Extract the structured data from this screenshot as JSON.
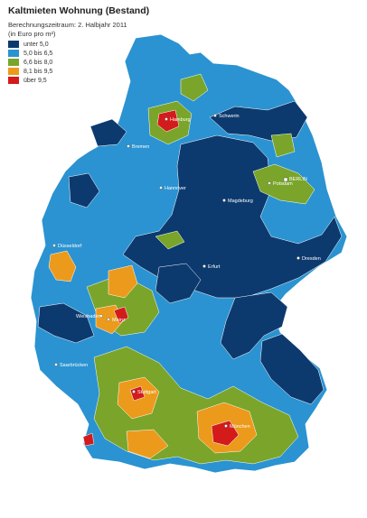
{
  "title": "Kaltmieten Wohnung (Bestand)",
  "subtitle": "Berechnungszeitraum: 2. Halbjahr 2011",
  "unit": "(in Euro pro m²)",
  "legend": [
    {
      "label": "unter 5,0",
      "color": "#0d3a6e"
    },
    {
      "label": "5,0 bis 6,5",
      "color": "#2b93d1"
    },
    {
      "label": "6,6 bis 8,0",
      "color": "#7aa52a"
    },
    {
      "label": "8,1 bis 9,5",
      "color": "#ec9a1c"
    },
    {
      "label": "über 9,5",
      "color": "#d31b1b"
    }
  ],
  "cities": [
    {
      "name": "Hamburg"
    },
    {
      "name": "Schwerin"
    },
    {
      "name": "Bremen"
    },
    {
      "name": "BERLIN"
    },
    {
      "name": "Potsdam"
    },
    {
      "name": "Hannover"
    },
    {
      "name": "Magdeburg"
    },
    {
      "name": "Düsseldorf"
    },
    {
      "name": "Erfurt"
    },
    {
      "name": "Dresden"
    },
    {
      "name": "Wiesbaden"
    },
    {
      "name": "Mainz"
    },
    {
      "name": "Saarbrücken"
    },
    {
      "name": "Stuttgart"
    },
    {
      "name": "München"
    }
  ]
}
